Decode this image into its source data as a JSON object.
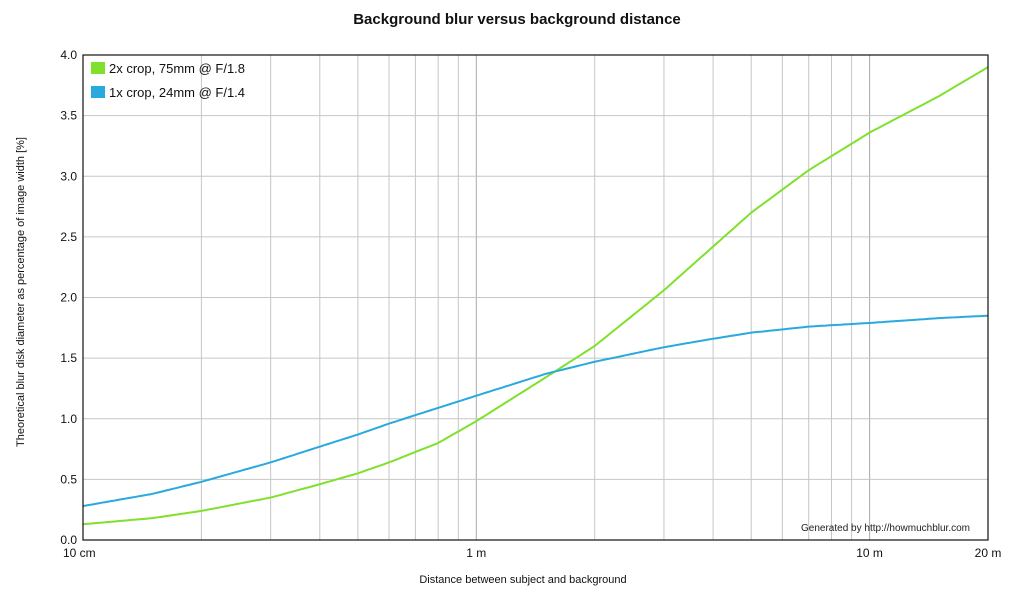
{
  "chart_data": {
    "type": "line",
    "title": "Background blur versus background distance",
    "xlabel": "Distance between subject and background",
    "ylabel": "Theoretical blur disk diameter as percentage of image width [%]",
    "x_scale": "log",
    "x_unit": "m",
    "xlim": [
      0.1,
      20
    ],
    "ylim": [
      0,
      4
    ],
    "grid": true,
    "legend_position": "top-left",
    "x_ticks": [
      {
        "value": 0.1,
        "label": "10 cm"
      },
      {
        "value": 1,
        "label": "1 m"
      },
      {
        "value": 10,
        "label": "10 m"
      },
      {
        "value": 20,
        "label": "20 m"
      }
    ],
    "y_ticks": [
      {
        "value": 0,
        "label": "0.0"
      },
      {
        "value": 0.5,
        "label": "0.5"
      },
      {
        "value": 1,
        "label": "1.0"
      },
      {
        "value": 1.5,
        "label": "1.5"
      },
      {
        "value": 2,
        "label": "2.0"
      },
      {
        "value": 2.5,
        "label": "2.5"
      },
      {
        "value": 3,
        "label": "3.0"
      },
      {
        "value": 3.5,
        "label": "3.5"
      },
      {
        "value": 4,
        "label": "4.0"
      }
    ],
    "x_minor_grid": [
      0.2,
      0.3,
      0.4,
      0.5,
      0.6,
      0.7,
      0.8,
      0.9,
      2,
      3,
      4,
      5,
      6,
      7,
      8,
      9
    ],
    "series": [
      {
        "name": "2x crop, 75mm @ F/1.8",
        "color": "#7fe12b",
        "x": [
          0.1,
          0.15,
          0.2,
          0.3,
          0.4,
          0.5,
          0.6,
          0.8,
          1,
          1.5,
          2,
          3,
          4,
          5,
          7,
          10,
          15,
          20
        ],
        "y": [
          0.13,
          0.18,
          0.24,
          0.35,
          0.46,
          0.55,
          0.64,
          0.8,
          0.98,
          1.34,
          1.6,
          2.06,
          2.42,
          2.7,
          3.05,
          3.36,
          3.66,
          3.9
        ]
      },
      {
        "name": "1x crop, 24mm @ F/1.4",
        "color": "#29a9de",
        "x": [
          0.1,
          0.15,
          0.2,
          0.3,
          0.4,
          0.5,
          0.6,
          0.8,
          1,
          1.5,
          2,
          3,
          4,
          5,
          7,
          10,
          15,
          20
        ],
        "y": [
          0.28,
          0.38,
          0.48,
          0.64,
          0.77,
          0.87,
          0.96,
          1.09,
          1.19,
          1.37,
          1.47,
          1.59,
          1.66,
          1.71,
          1.76,
          1.79,
          1.83,
          1.85
        ]
      }
    ],
    "annotation": "Generated by http://howmuchblur.com"
  }
}
